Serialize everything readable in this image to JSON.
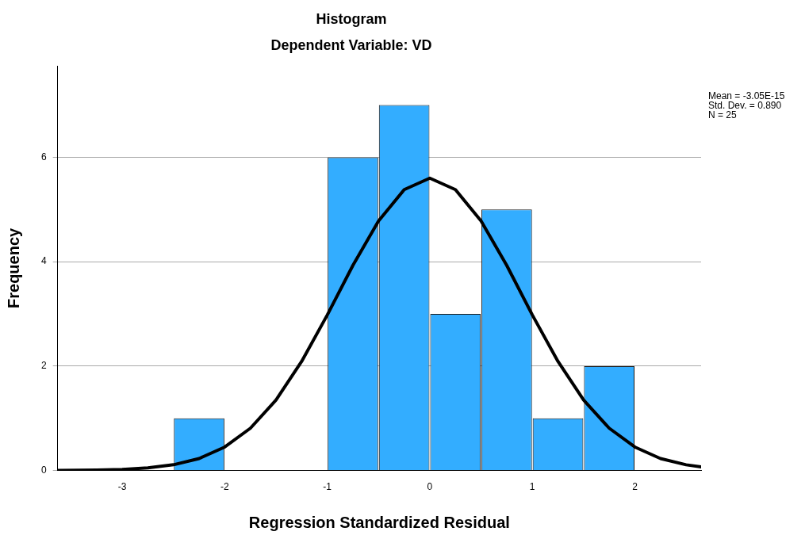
{
  "chart_data": {
    "type": "histogram",
    "title": "Histogram",
    "subtitle": "Dependent Variable: VD",
    "xlabel": "Regression Standardized Residual",
    "ylabel": "Frequency",
    "bins": [
      -2.5,
      -2,
      -1.5,
      -1,
      -0.5,
      0,
      0.5,
      1,
      1.5,
      2
    ],
    "values": [
      1,
      0,
      0,
      6,
      7,
      3,
      5,
      1,
      2
    ],
    "color": "#33adff",
    "series": [
      {
        "type": "line",
        "color": "#000000",
        "x": [
          -3.63,
          -3.25,
          -3,
          -2.75,
          -2.5,
          -2.25,
          -2,
          -1.75,
          -1.5,
          -1.25,
          -1,
          -0.75,
          -0.5,
          -0.25,
          0,
          0.25,
          0.5,
          0.75,
          1,
          1.25,
          1.5,
          1.75,
          2,
          2.25,
          2.5,
          2.646
        ],
        "values": [
          0,
          0.01,
          0.02,
          0.05,
          0.11,
          0.23,
          0.45,
          0.81,
          1.35,
          2.09,
          2.98,
          3.93,
          4.78,
          5.38,
          5.6,
          5.38,
          4.78,
          3.93,
          2.98,
          2.09,
          1.35,
          0.81,
          0.45,
          0.23,
          0.11,
          0.07
        ]
      }
    ],
    "xlim": [
      -3.63,
      2.646
    ],
    "xticks": [
      -3,
      -2,
      -1,
      0,
      1,
      2
    ],
    "ylim": [
      0,
      7.75
    ],
    "yticks": [
      0,
      2,
      4,
      6
    ],
    "grid": "y",
    "legend": false,
    "annotations": [
      "Mean = -3.05E-15",
      "Std. Dev. = 0.890",
      "N = 25"
    ]
  }
}
